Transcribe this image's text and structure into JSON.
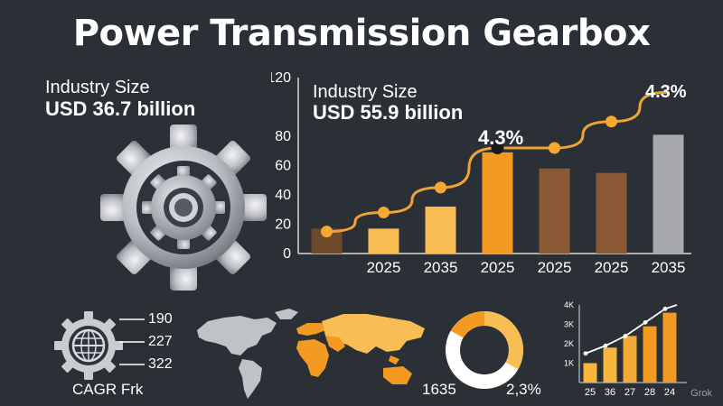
{
  "title": "Power Transmission Gearbox",
  "left_stat": {
    "label": "Industry Size",
    "value": "USD 36.7 billion"
  },
  "chart_stat": {
    "label": "Industry Size",
    "value": "USD 55.9 billion"
  },
  "legend": {
    "values": [
      "190",
      "227",
      "322"
    ],
    "caption": "CAGR Frk"
  },
  "donut_labels": {
    "left": "1635",
    "right": "2,3%"
  },
  "watermark": "Grok",
  "colors": {
    "background": "#2b2f36",
    "orange": "#f39a22",
    "light_orange": "#f9bd55",
    "brown": "#8e5a32",
    "gray": "#a7a9ad"
  },
  "icons": [
    "gear-icon",
    "globe-icon",
    "world-map",
    "donut-chart"
  ],
  "chart_data": [
    {
      "type": "bar",
      "title": "",
      "categories": [
        "",
        "2025",
        "2035",
        "2025",
        "2025",
        "2025",
        "2035"
      ],
      "values": [
        17,
        17,
        32,
        69,
        58,
        55,
        81
      ],
      "bar_colors": [
        "#6d4a2c",
        "#f9bd55",
        "#f9bd55",
        "#f39a22",
        "#8a5a36",
        "#8a5a36",
        "#a7a9ad"
      ],
      "line_series": {
        "values": [
          15,
          28,
          45,
          72,
          72,
          90,
          110
        ]
      },
      "ylim": [
        0,
        120
      ],
      "yticks": [
        0,
        20,
        40,
        60,
        80,
        120
      ],
      "annotations": [
        "4.3%",
        "4.3%"
      ],
      "xlabel": "",
      "ylabel": ""
    },
    {
      "type": "bar",
      "title": "",
      "categories": [
        "25",
        "36",
        "27",
        "28",
        "24"
      ],
      "values": [
        1.0,
        1.8,
        2.4,
        2.9,
        3.6
      ],
      "line_series": {
        "values": [
          1.5,
          1.9,
          2.4,
          3.1,
          3.8
        ]
      },
      "ylim": [
        0,
        4
      ],
      "yticks": [
        "1K",
        "2K",
        "3K",
        "4K"
      ],
      "xlabel": "",
      "ylabel": ""
    }
  ]
}
